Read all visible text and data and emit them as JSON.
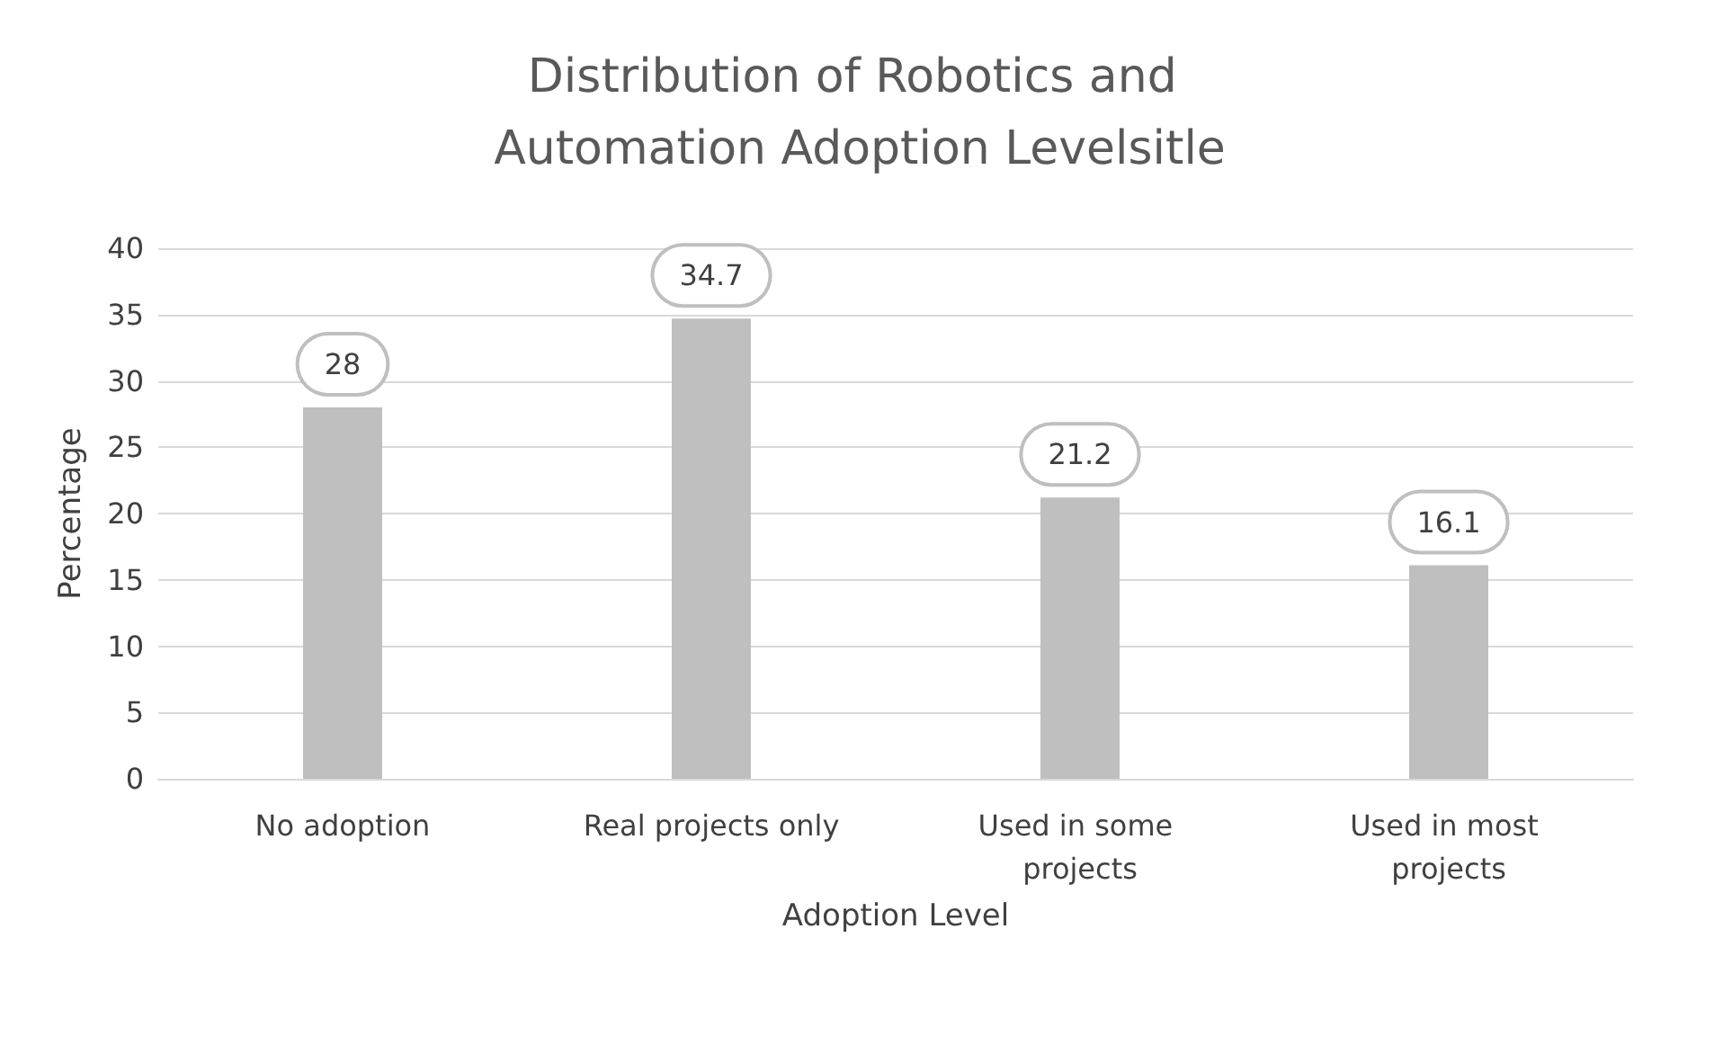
{
  "chart_data": {
    "type": "bar",
    "title": "Distribution of Robotics and Automation Adoption Levelsitle",
    "xlabel": "Adoption Level",
    "ylabel": "Percentage",
    "categories": [
      "No adoption",
      "Real projects only",
      "Used in some projects",
      "Used in most projects"
    ],
    "values": [
      28,
      34.7,
      21.2,
      16.1
    ],
    "color": "#bfbfbf",
    "ylim": [
      0,
      40
    ],
    "yticks": [
      0,
      5,
      10,
      15,
      20,
      25,
      30,
      35,
      40
    ],
    "grid": "y",
    "data_labels": true
  }
}
